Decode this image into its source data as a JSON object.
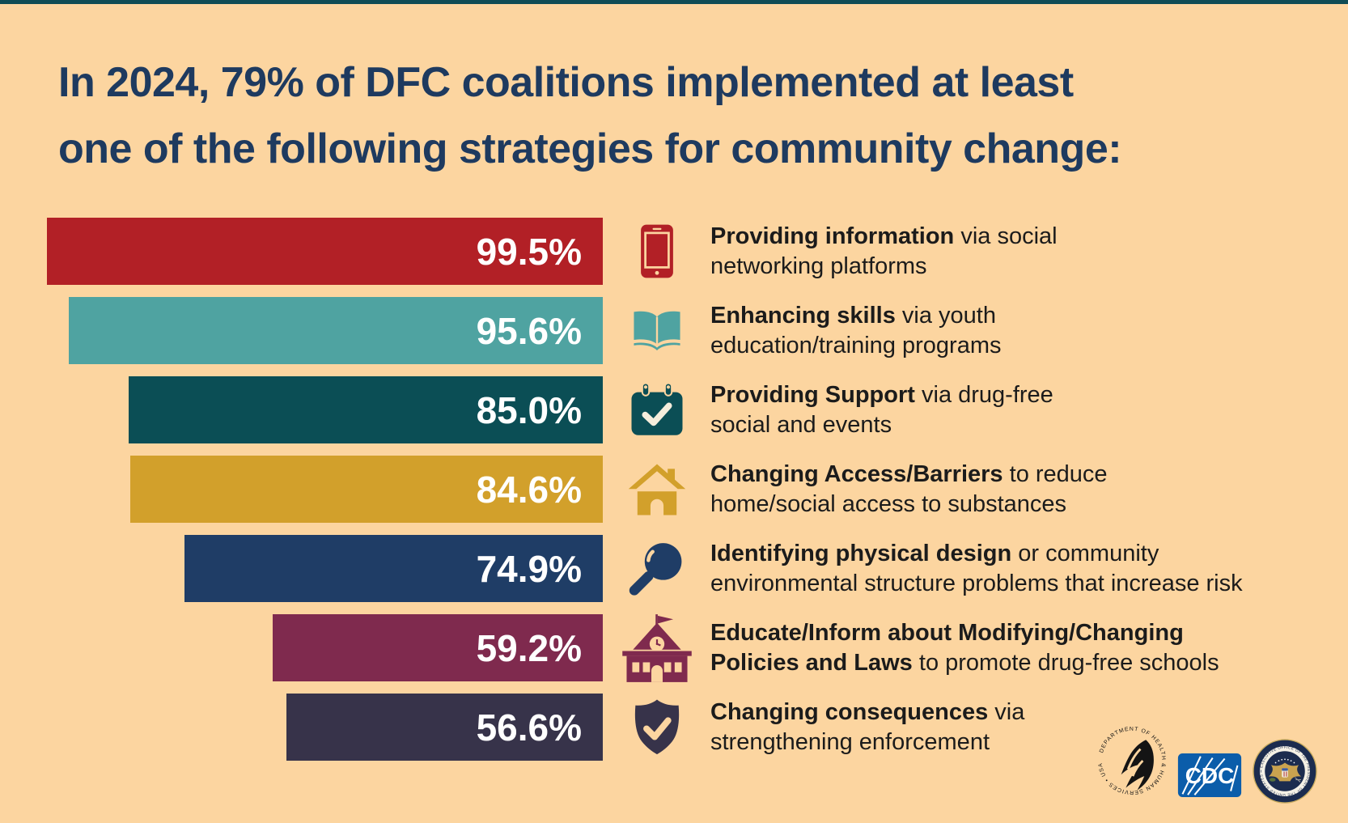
{
  "window": {
    "background": "#FCD5A0",
    "top_strip_color": "#0F4C55",
    "title_color": "#1E3A5F",
    "body_text_color": "#1B1B1B",
    "bar_value_text_color": "#FFFFFF"
  },
  "title": {
    "line1": "In 2024, 79% of DFC coalitions implemented at least",
    "line2": "one of the following strategies for community change:"
  },
  "chart_data": {
    "type": "bar",
    "orientation": "horizontal",
    "unit": "%",
    "xlim": [
      0,
      100
    ],
    "bars_right_aligned": true,
    "grid": false,
    "legend": false,
    "title": "In 2024, 79% of DFC coalitions implemented at least one of the following strategies for community change:",
    "categories": [
      "Providing information",
      "Enhancing skills",
      "Providing Support",
      "Changing Access/Barriers",
      "Identifying physical design",
      "Educate/Inform about Modifying/Changing Policies and Laws",
      "Changing consequences"
    ],
    "values": [
      99.5,
      95.6,
      85.0,
      84.6,
      74.9,
      59.2,
      56.6
    ],
    "items": [
      {
        "value": 99.5,
        "value_label": "99.5%",
        "bar_color": "#B22026",
        "icon": "smartphone-icon",
        "icon_color": "#B22026",
        "desc_lines": [
          [
            {
              "t": "Providing information",
              "b": true
            },
            {
              "t": " via social",
              "b": false
            }
          ],
          [
            {
              "t": "networking platforms",
              "b": false
            }
          ]
        ]
      },
      {
        "value": 95.6,
        "value_label": "95.6%",
        "bar_color": "#4FA3A1",
        "icon": "open-book-icon",
        "icon_color": "#4FA3A1",
        "desc_lines": [
          [
            {
              "t": "Enhancing skills",
              "b": true
            },
            {
              "t": " via youth",
              "b": false
            }
          ],
          [
            {
              "t": "education/training programs",
              "b": false
            }
          ]
        ]
      },
      {
        "value": 85.0,
        "value_label": "85.0%",
        "bar_color": "#0B4E55",
        "icon": "calendar-check-icon",
        "icon_color": "#0B4E55",
        "desc_lines": [
          [
            {
              "t": "Providing Support",
              "b": true
            },
            {
              "t": " via drug-free",
              "b": false
            }
          ],
          [
            {
              "t": "social and events",
              "b": false
            }
          ]
        ]
      },
      {
        "value": 84.6,
        "value_label": "84.6%",
        "bar_color": "#D2A02B",
        "icon": "house-icon",
        "icon_color": "#D2A02B",
        "desc_lines": [
          [
            {
              "t": "Changing Access/Barriers",
              "b": true
            },
            {
              "t": " to reduce",
              "b": false
            }
          ],
          [
            {
              "t": "home/social access to substances",
              "b": false
            }
          ]
        ]
      },
      {
        "value": 74.9,
        "value_label": "74.9%",
        "bar_color": "#1F3D66",
        "icon": "magnifier-icon",
        "icon_color": "#1F3D66",
        "desc_lines": [
          [
            {
              "t": "Identifying physical design",
              "b": true
            },
            {
              "t": " or community",
              "b": false
            }
          ],
          [
            {
              "t": "environmental structure problems that increase risk",
              "b": false
            }
          ]
        ]
      },
      {
        "value": 59.2,
        "value_label": "59.2%",
        "bar_color": "#7F2A4E",
        "icon": "school-icon",
        "icon_color": "#7F2A4E",
        "desc_lines": [
          [
            {
              "t": "Educate/Inform about Modifying/Changing",
              "b": true
            }
          ],
          [
            {
              "t": "Policies and Laws",
              "b": true
            },
            {
              "t": " to promote drug-free schools",
              "b": false
            }
          ]
        ]
      },
      {
        "value": 56.6,
        "value_label": "56.6%",
        "bar_color": "#37334A",
        "icon": "shield-check-icon",
        "icon_color": "#37334A",
        "desc_lines": [
          [
            {
              "t": "Changing consequences",
              "b": true
            },
            {
              "t": " via",
              "b": false
            }
          ],
          [
            {
              "t": "strengthening enforcement",
              "b": false
            }
          ]
        ]
      }
    ]
  },
  "footer": {
    "hhs_label": "DEPARTMENT OF HEALTH & HUMAN SERVICES • USA",
    "cdc_label": "CDC",
    "eop_label": "• EXECUTIVE OFFICE OF THE PRESIDENT OF THE UNITED STATES •"
  }
}
